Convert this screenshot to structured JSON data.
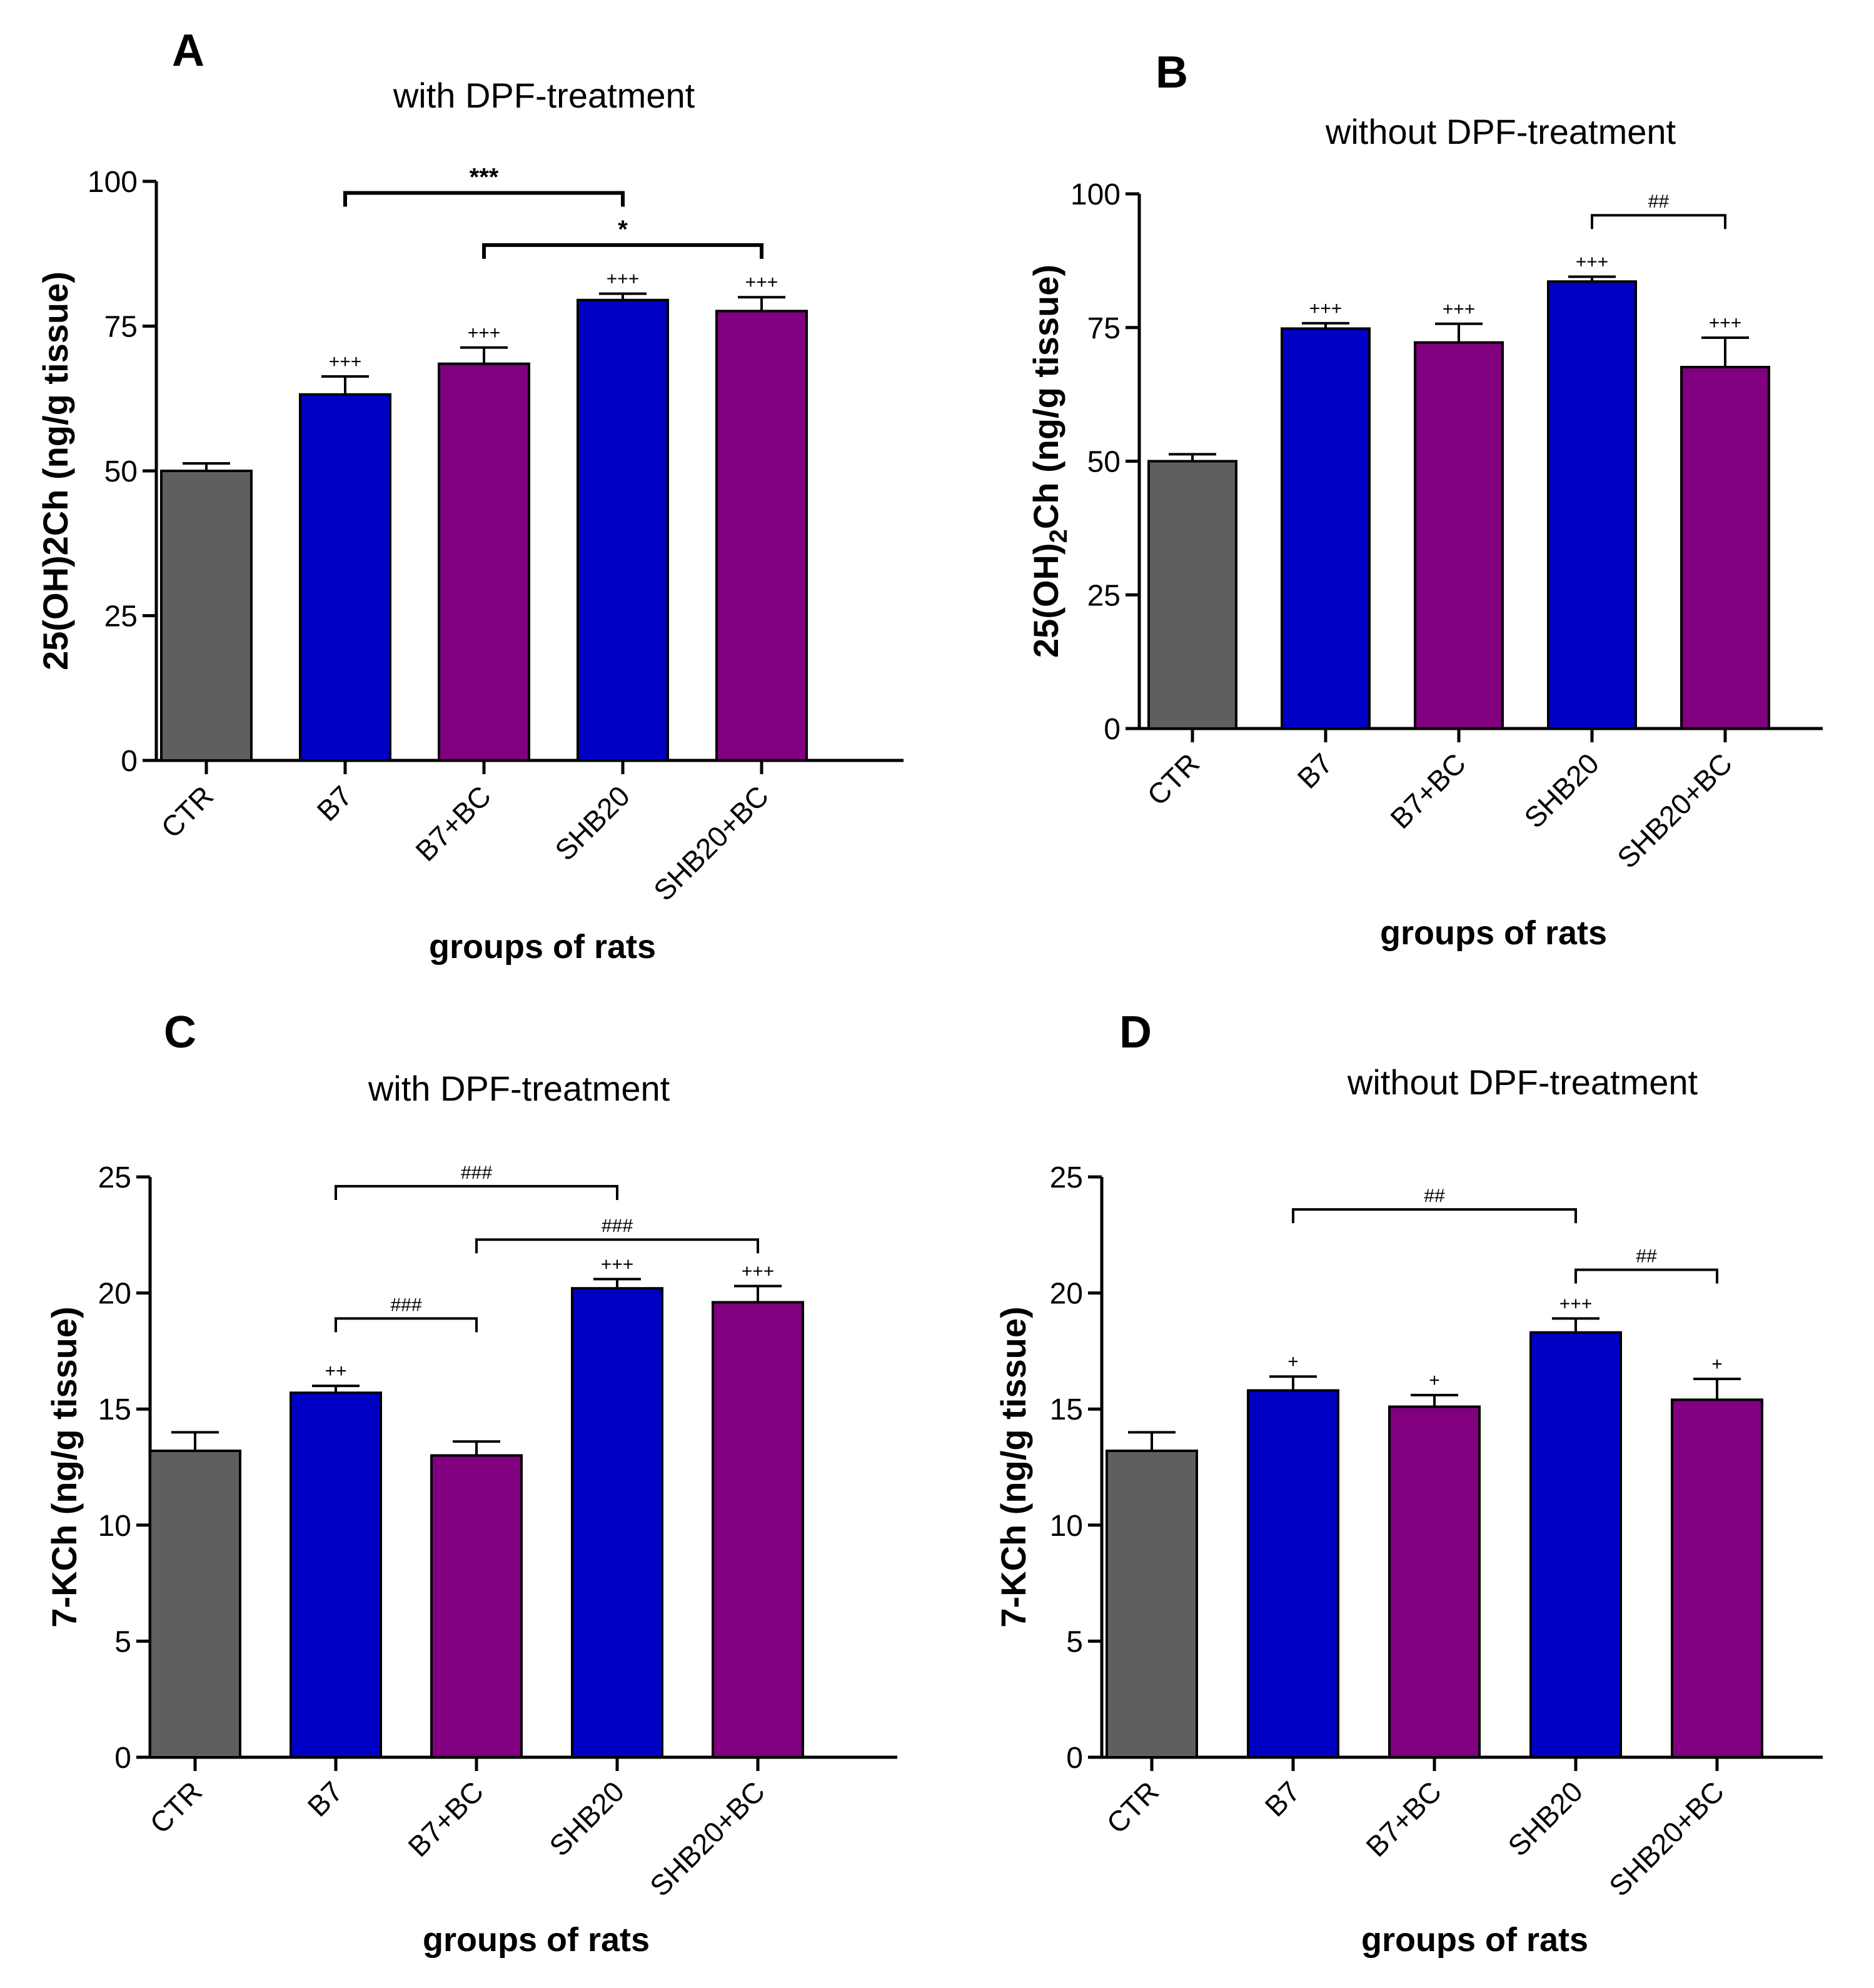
{
  "colors": {
    "ctr": "#5f5f5f",
    "blue": "#0000c4",
    "purple": "#800080"
  },
  "chart_data": [
    {
      "type": "bar",
      "panel": "A",
      "title": "with DPF-treatment",
      "xlabel": "groups of rats",
      "ylabel": "25(OH)2Ch (ng/g tissue)",
      "ylim": [
        0,
        100
      ],
      "yticks": [
        "0",
        "25",
        "50",
        "75",
        "100"
      ],
      "categories": [
        "CTR",
        "B7",
        "B7+BC",
        "SHB20",
        "SHB20+BC"
      ],
      "values": [
        50,
        63.2,
        68.5,
        79.5,
        77.6
      ],
      "errors": [
        1.3,
        3.1,
        2.8,
        1.1,
        2.4
      ],
      "bar_colors": [
        "ctr",
        "blue",
        "purple",
        "blue",
        "purple"
      ],
      "marks": [
        "",
        "+++",
        "+++",
        "+++",
        "+++"
      ],
      "brackets": [
        {
          "from": 1,
          "to": 3,
          "y": 98,
          "label": "***",
          "bold": true
        },
        {
          "from": 2,
          "to": 4,
          "y": 89,
          "label": "*",
          "bold": true
        }
      ]
    },
    {
      "type": "bar",
      "panel": "B",
      "title": "without DPF-treatment",
      "xlabel": "groups of rats",
      "ylabel": "25(OH)2Ch (ng/g tissue)",
      "ylabel_main": "25(OH)",
      "ylabel_sub": "2",
      "ylabel_end": "Ch (ng/g tissue)",
      "ylim": [
        0,
        100
      ],
      "yticks": [
        "0",
        "25",
        "50",
        "75",
        "100"
      ],
      "categories": [
        "CTR",
        "B7",
        "B7+BC",
        "SHB20",
        "SHB20+BC"
      ],
      "values": [
        50,
        74.8,
        72.2,
        83.6,
        67.6
      ],
      "errors": [
        1.3,
        1.0,
        3.5,
        0.9,
        5.5
      ],
      "bar_colors": [
        "ctr",
        "blue",
        "purple",
        "blue",
        "purple"
      ],
      "marks": [
        "",
        "+++",
        "+++",
        "+++",
        "+++"
      ],
      "brackets": [
        {
          "from": 3,
          "to": 4,
          "y": 96,
          "label": "##",
          "bold": false
        }
      ]
    },
    {
      "type": "bar",
      "panel": "C",
      "title": "with DPF-treatment",
      "xlabel": "groups of rats",
      "ylabel": "7-KCh (ng/g tissue)",
      "ylim": [
        0,
        25
      ],
      "yticks": [
        "0",
        "5",
        "10",
        "15",
        "20",
        "25"
      ],
      "categories": [
        "CTR",
        "B7",
        "B7+BC",
        "SHB20",
        "SHB20+BC"
      ],
      "values": [
        13.2,
        15.7,
        13.0,
        20.2,
        19.6
      ],
      "errors": [
        0.8,
        0.3,
        0.6,
        0.4,
        0.7
      ],
      "bar_colors": [
        "ctr",
        "blue",
        "purple",
        "blue",
        "purple"
      ],
      "marks": [
        "",
        "++",
        "",
        "+++",
        "+++"
      ],
      "brackets": [
        {
          "from": 1,
          "to": 3,
          "y": 24.6,
          "label": "###",
          "bold": false
        },
        {
          "from": 2,
          "to": 4,
          "y": 22.3,
          "label": "###",
          "bold": false
        },
        {
          "from": 1,
          "to": 2,
          "y": 18.9,
          "label": "###",
          "bold": false
        }
      ]
    },
    {
      "type": "bar",
      "panel": "D",
      "title": "without DPF-treatment",
      "xlabel": "groups of rats",
      "ylabel": "7-KCh (ng/g tissue)",
      "ylim": [
        0,
        25
      ],
      "yticks": [
        "0",
        "5",
        "10",
        "15",
        "20",
        "25"
      ],
      "categories": [
        "CTR",
        "B7",
        "B7+BC",
        "SHB20",
        "SHB20+BC"
      ],
      "values": [
        13.2,
        15.8,
        15.1,
        18.3,
        15.4
      ],
      "errors": [
        0.8,
        0.6,
        0.5,
        0.6,
        0.9
      ],
      "bar_colors": [
        "ctr",
        "blue",
        "purple",
        "blue",
        "purple"
      ],
      "marks": [
        "",
        "+",
        "+",
        "+++",
        "+"
      ],
      "brackets": [
        {
          "from": 1,
          "to": 3,
          "y": 23.6,
          "label": "##",
          "bold": false
        },
        {
          "from": 3,
          "to": 4,
          "y": 21.0,
          "label": "##",
          "bold": false
        }
      ]
    }
  ]
}
